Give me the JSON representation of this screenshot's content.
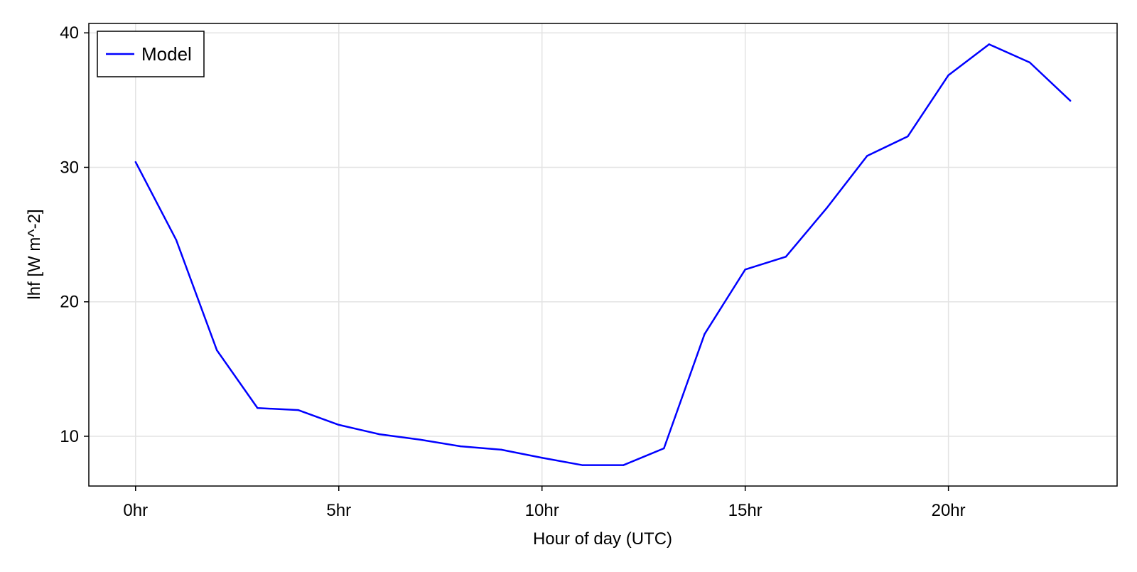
{
  "chart_data": {
    "type": "line",
    "title": "",
    "xlabel": "Hour of day (UTC)",
    "ylabel": "lhf [W m^-2]",
    "x": [
      0,
      1,
      2,
      3,
      4,
      5,
      6,
      7,
      8,
      9,
      10,
      11,
      12,
      13,
      14,
      15,
      16,
      17,
      18,
      19,
      20,
      21,
      22,
      23
    ],
    "series": [
      {
        "name": "Model",
        "color": "#0000ff",
        "values": [
          30.4,
          24.6,
          16.4,
          12.1,
          11.95,
          10.85,
          10.15,
          9.75,
          9.25,
          9.0,
          8.4,
          7.85,
          7.85,
          9.1,
          17.6,
          22.4,
          23.35,
          26.95,
          30.85,
          32.3,
          36.85,
          39.15,
          37.8,
          34.95
        ]
      }
    ],
    "xlim": [
      -1.15,
      24.15
    ],
    "ylim": [
      6.3,
      40.7
    ],
    "xticks": [
      0,
      5,
      10,
      15,
      20
    ],
    "xtick_labels": [
      "0hr",
      "5hr",
      "10hr",
      "15hr",
      "20hr"
    ],
    "yticks": [
      10,
      20,
      30,
      40
    ],
    "ytick_labels": [
      "10",
      "20",
      "30",
      "40"
    ],
    "grid": true,
    "legend_position": "top-left"
  }
}
